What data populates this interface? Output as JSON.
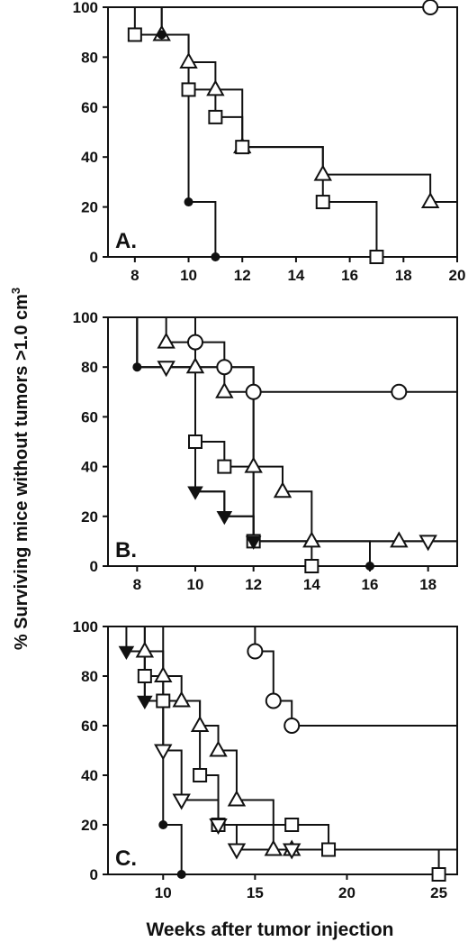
{
  "chart_data": [
    {
      "type": "line",
      "panel_label": "A.",
      "xlim": [
        7,
        20
      ],
      "ylim": [
        0,
        100
      ],
      "xticks": [
        8,
        10,
        12,
        14,
        16,
        18,
        20
      ],
      "yticks": [
        0,
        20,
        40,
        60,
        80,
        100
      ],
      "series": [
        {
          "marker": "circle-open",
          "x": [
            7,
            19,
            20
          ],
          "y": [
            100,
            100,
            100
          ],
          "markers_x": [
            19
          ],
          "markers_y": [
            100
          ]
        },
        {
          "marker": "triangle-up-open",
          "x": [
            7,
            9,
            10,
            11,
            12,
            15,
            19,
            20
          ],
          "y": [
            100,
            89,
            78,
            67,
            44,
            33,
            22,
            22
          ],
          "markers_x": [
            9,
            10,
            11,
            12,
            15,
            19
          ],
          "markers_y": [
            89,
            78,
            67,
            44,
            33,
            22
          ]
        },
        {
          "marker": "square-open",
          "x": [
            7,
            8,
            10,
            11,
            12,
            15,
            17
          ],
          "y": [
            100,
            89,
            67,
            56,
            44,
            22,
            0
          ],
          "markers_x": [
            8,
            10,
            11,
            12,
            15,
            17
          ],
          "markers_y": [
            89,
            67,
            56,
            44,
            22,
            0
          ]
        },
        {
          "marker": "circle-filled",
          "x": [
            7,
            9,
            10,
            11
          ],
          "y": [
            100,
            89,
            22,
            0
          ],
          "markers_x": [
            9,
            10,
            11
          ],
          "markers_y": [
            89,
            22,
            0
          ]
        }
      ]
    },
    {
      "type": "line",
      "panel_label": "B.",
      "xlim": [
        7,
        19
      ],
      "ylim": [
        0,
        100
      ],
      "xticks": [
        8,
        10,
        12,
        14,
        16,
        18
      ],
      "yticks": [
        0,
        20,
        40,
        60,
        80,
        100
      ],
      "series": [
        {
          "marker": "circle-open",
          "x": [
            7,
            10,
            11,
            12,
            17,
            19
          ],
          "y": [
            100,
            90,
            80,
            70,
            70,
            70
          ],
          "markers_x": [
            10,
            11,
            12,
            17
          ],
          "markers_y": [
            90,
            80,
            70,
            70
          ]
        },
        {
          "marker": "triangle-up-open",
          "x": [
            7,
            9,
            10,
            11,
            12,
            13,
            14,
            17,
            19
          ],
          "y": [
            100,
            90,
            80,
            70,
            40,
            30,
            10,
            10,
            10
          ],
          "markers_x": [
            9,
            10,
            11,
            12,
            13,
            14,
            17
          ],
          "markers_y": [
            90,
            80,
            70,
            40,
            30,
            10,
            10
          ]
        },
        {
          "marker": "square-open",
          "x": [
            7,
            8,
            10,
            11,
            12,
            14
          ],
          "y": [
            100,
            80,
            50,
            40,
            10,
            0
          ],
          "markers_x": [
            10,
            11,
            12,
            14
          ],
          "markers_y": [
            50,
            40,
            10,
            0
          ]
        },
        {
          "marker": "triangle-down-open",
          "x": [
            7,
            8,
            9,
            10,
            11,
            12,
            18,
            19
          ],
          "y": [
            100,
            80,
            80,
            30,
            20,
            10,
            10,
            10
          ],
          "markers_x": [
            9,
            18
          ],
          "markers_y": [
            80,
            10
          ]
        },
        {
          "marker": "triangle-down-filled",
          "x": [
            10,
            11,
            12
          ],
          "y": [
            30,
            20,
            10
          ],
          "markers_x": [
            10,
            11,
            12
          ],
          "markers_y": [
            30,
            20,
            10
          ]
        },
        {
          "marker": "circle-filled",
          "x": [
            7,
            8,
            12,
            16
          ],
          "y": [
            100,
            80,
            10,
            0
          ],
          "markers_x": [
            8,
            16
          ],
          "markers_y": [
            80,
            0
          ]
        }
      ]
    },
    {
      "type": "line",
      "panel_label": "C.",
      "xlim": [
        7,
        26
      ],
      "ylim": [
        0,
        100
      ],
      "xticks": [
        10,
        15,
        20,
        25
      ],
      "yticks": [
        0,
        20,
        40,
        60,
        80,
        100
      ],
      "series": [
        {
          "marker": "circle-open",
          "x": [
            7,
            15,
            16,
            17,
            26
          ],
          "y": [
            100,
            90,
            70,
            60,
            60
          ],
          "markers_x": [
            15,
            16,
            17
          ],
          "markers_y": [
            90,
            70,
            60
          ]
        },
        {
          "marker": "triangle-up-open",
          "x": [
            7,
            9,
            10,
            11,
            12,
            13,
            14,
            16,
            17,
            26
          ],
          "y": [
            100,
            90,
            80,
            70,
            60,
            50,
            30,
            10,
            10,
            10
          ],
          "markers_x": [
            9,
            10,
            11,
            12,
            13,
            14,
            16,
            17
          ],
          "markers_y": [
            90,
            80,
            70,
            60,
            50,
            30,
            10,
            10
          ]
        },
        {
          "marker": "square-open",
          "x": [
            7,
            9,
            10,
            12,
            13,
            17,
            19,
            25
          ],
          "y": [
            100,
            80,
            70,
            40,
            20,
            20,
            10,
            0
          ],
          "markers_x": [
            9,
            10,
            12,
            13,
            17,
            19,
            25
          ],
          "markers_y": [
            80,
            70,
            40,
            20,
            20,
            10,
            0
          ]
        },
        {
          "marker": "triangle-down-open",
          "x": [
            7,
            8,
            9,
            10,
            11,
            13,
            14,
            17
          ],
          "y": [
            100,
            90,
            70,
            50,
            30,
            20,
            10,
            10
          ],
          "markers_x": [
            10,
            11,
            13,
            14,
            17
          ],
          "markers_y": [
            50,
            30,
            20,
            10,
            10
          ]
        },
        {
          "marker": "triangle-down-filled",
          "x": [
            8,
            9
          ],
          "y": [
            90,
            70
          ],
          "markers_x": [
            8,
            9
          ],
          "markers_y": [
            90,
            70
          ]
        },
        {
          "marker": "circle-filled",
          "x": [
            7,
            10,
            11
          ],
          "y": [
            100,
            20,
            0
          ],
          "markers_x": [
            10,
            11
          ],
          "markers_y": [
            20,
            0
          ]
        }
      ]
    }
  ],
  "ylabel": "% Surviving mice without tumors >1.0 cm",
  "ylabel_sup": "3",
  "xlabel": "Weeks after tumor injection"
}
